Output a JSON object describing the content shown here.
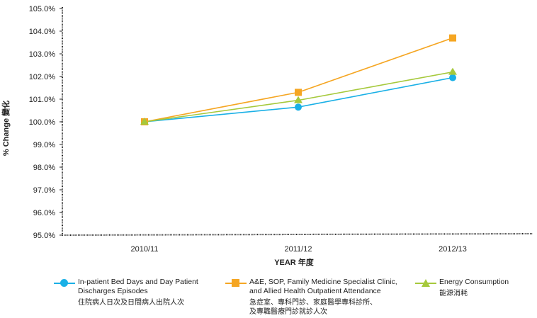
{
  "chart_data": {
    "type": "line",
    "categories": [
      "2010/11",
      "2011/12",
      "2012/13"
    ],
    "series": [
      {
        "name_en_1": "In-patient Bed Days and Day Patient",
        "name_en_2": "Discharges Episodes",
        "name_zh": "住院病人日次及日間病人出院人次",
        "color": "#1ab0e6",
        "marker": "circle",
        "values": [
          100.0,
          100.65,
          101.95
        ]
      },
      {
        "name_en_1": "A&E, SOP, Family Medicine Specialist Clinic,",
        "name_en_2": "and Allied Health Outpatient Attendance",
        "name_zh": "急症室、專科門診、家庭醫學專科診所、",
        "name_zh_2": "及專職醫療門診就診人次",
        "color": "#f5a623",
        "marker": "square",
        "values": [
          100.0,
          101.3,
          103.7
        ]
      },
      {
        "name_en_1": "Energy Consumption",
        "name_zh": "能源消耗",
        "color": "#a6c93c",
        "marker": "triangle",
        "values": [
          100.0,
          100.95,
          102.2
        ]
      }
    ],
    "xlabel": "YEAR 年度",
    "ylabel": "% Change 變化",
    "ylim": [
      95.0,
      105.0
    ],
    "yticks": [
      "95.0%",
      "96.0%",
      "97.0%",
      "98.0%",
      "99.0%",
      "100.0%",
      "101.0%",
      "102.0%",
      "103.0%",
      "104.0%",
      "105.0%"
    ],
    "grid": false,
    "legend_position": "bottom"
  }
}
